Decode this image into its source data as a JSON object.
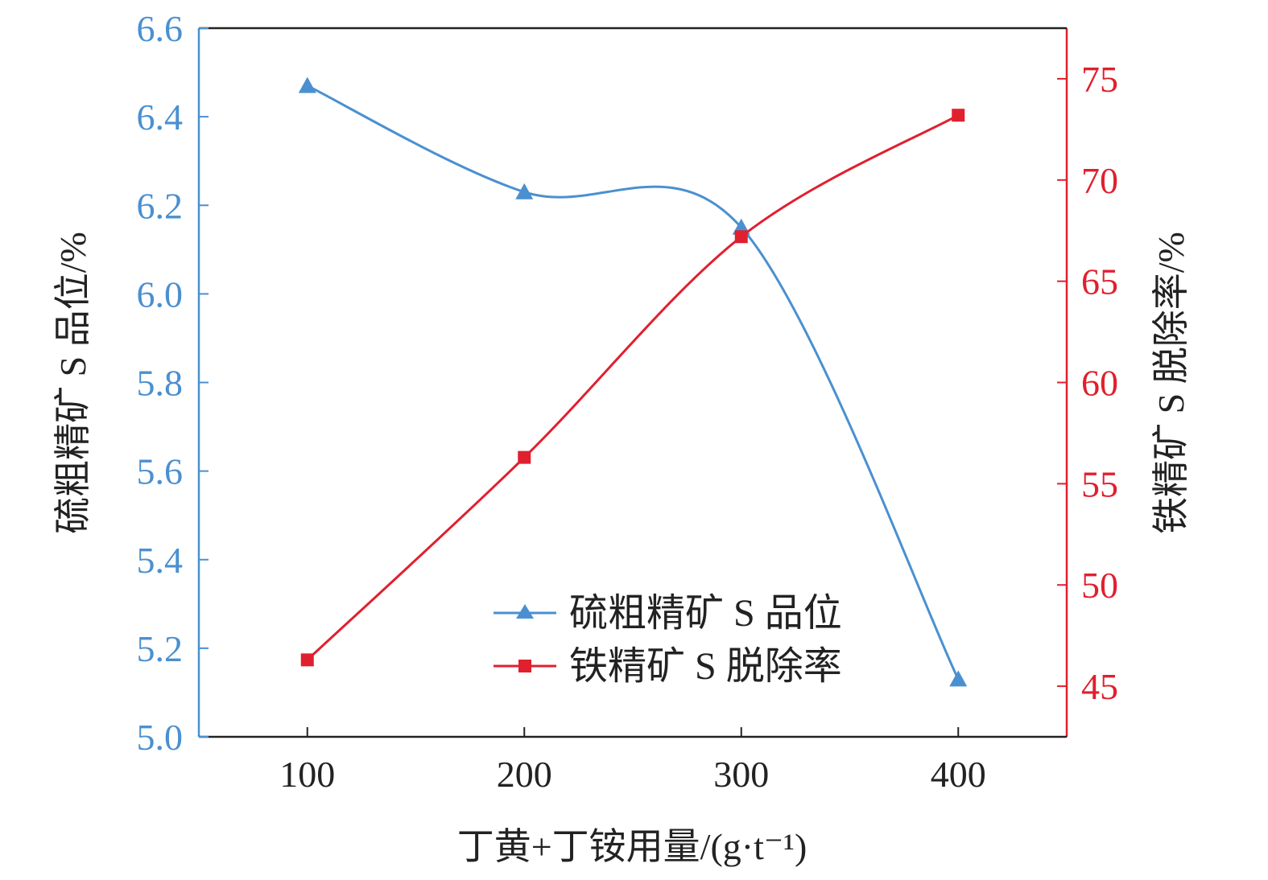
{
  "chart_data": {
    "type": "line",
    "title": "",
    "xlabel": "丁黄+丁铵用量/(g·t⁻¹)",
    "x": [
      100,
      200,
      300,
      400
    ],
    "xlim": [
      50,
      450
    ],
    "x_ticks": [
      "100",
      "200",
      "300",
      "400"
    ],
    "left_axis": {
      "label": "硫粗精矿 S 品位/%",
      "ylim": [
        5.0,
        6.6
      ],
      "ticks": [
        "5.0",
        "5.2",
        "5.4",
        "5.6",
        "5.8",
        "6.0",
        "6.2",
        "6.4",
        "6.6"
      ],
      "color": "#4a90d0"
    },
    "right_axis": {
      "label": "铁精矿 S 脱除率/%",
      "ylim": [
        42.5,
        77.5
      ],
      "ticks": [
        "45",
        "50",
        "55",
        "60",
        "65",
        "70",
        "75"
      ],
      "color": "#e0202e"
    },
    "series": [
      {
        "name": "硫粗精矿 S 品位",
        "axis": "left",
        "marker": "triangle",
        "color": "#4a90d0",
        "values": [
          6.47,
          6.23,
          6.15,
          5.13
        ]
      },
      {
        "name": "铁精矿 S 脱除率",
        "axis": "right",
        "marker": "square",
        "color": "#e0202e",
        "values": [
          46.3,
          56.3,
          67.2,
          73.2
        ]
      }
    ],
    "grid": false,
    "legend_position": "bottom-center"
  }
}
